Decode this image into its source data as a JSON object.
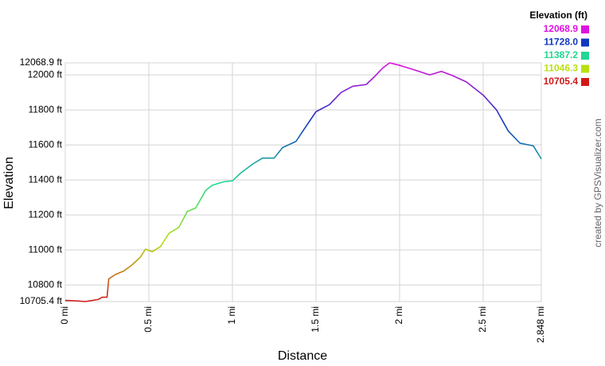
{
  "chart_data": {
    "type": "line",
    "x_label": "Distance",
    "y_label": "Elevation",
    "credit": "created by GPSVisualizer.com",
    "legend_title": "Elevation (ft)",
    "legend": [
      {
        "label": "12068.9",
        "value": 12068.9,
        "color": "#e010e0"
      },
      {
        "label": "11728.0",
        "value": 11728.0,
        "color": "#1038c0"
      },
      {
        "label": "11387.2",
        "value": 11387.2,
        "color": "#20d890"
      },
      {
        "label": "11046.3",
        "value": 11046.3,
        "color": "#b8e010"
      },
      {
        "label": "10705.4",
        "value": 10705.4,
        "color": "#d01818"
      }
    ],
    "grid": true,
    "xlim": [
      0,
      2.848
    ],
    "ylim": [
      10705.4,
      12068.9
    ],
    "xticks": [
      {
        "value": 0,
        "label": "0 mi"
      },
      {
        "value": 0.5,
        "label": "0.5 mi"
      },
      {
        "value": 1,
        "label": "1 mi"
      },
      {
        "value": 1.5,
        "label": "1.5 mi"
      },
      {
        "value": 2,
        "label": "2 mi"
      },
      {
        "value": 2.5,
        "label": "2.5 mi"
      },
      {
        "value": 2.848,
        "label": "2.848 mi"
      }
    ],
    "yticks": [
      {
        "value": 10705.4,
        "label": "10705.4 ft"
      },
      {
        "value": 10800,
        "label": "10800 ft"
      },
      {
        "value": 11000,
        "label": "11000 ft"
      },
      {
        "value": 11200,
        "label": "11200 ft"
      },
      {
        "value": 11400,
        "label": "11400 ft"
      },
      {
        "value": 11600,
        "label": "11600 ft"
      },
      {
        "value": 11800,
        "label": "11800 ft"
      },
      {
        "value": 12000,
        "label": "12000 ft"
      },
      {
        "value": 12068.9,
        "label": "12068.9 ft"
      }
    ],
    "x": [
      0,
      0.06,
      0.12,
      0.2,
      0.22,
      0.25,
      0.26,
      0.3,
      0.35,
      0.4,
      0.45,
      0.48,
      0.52,
      0.57,
      0.62,
      0.68,
      0.73,
      0.78,
      0.84,
      0.88,
      0.95,
      1.0,
      1.05,
      1.12,
      1.18,
      1.25,
      1.3,
      1.38,
      1.45,
      1.5,
      1.58,
      1.65,
      1.72,
      1.8,
      1.85,
      1.9,
      1.94,
      2.0,
      2.1,
      2.18,
      2.25,
      2.32,
      2.4,
      2.5,
      2.58,
      2.65,
      2.72,
      2.8,
      2.848
    ],
    "values": [
      10712,
      10710,
      10705.4,
      10718,
      10730,
      10730,
      10835,
      10860,
      10880,
      10915,
      10960,
      11005,
      10990,
      11020,
      11095,
      11130,
      11220,
      11240,
      11340,
      11370,
      11390,
      11395,
      11440,
      11490,
      11525,
      11525,
      11585,
      11620,
      11720,
      11790,
      11830,
      11900,
      11935,
      11945,
      11990,
      12040,
      12068.9,
      12055,
      12025,
      12000,
      12020,
      11995,
      11960,
      11885,
      11800,
      11680,
      11610,
      11595,
      11520
    ]
  }
}
